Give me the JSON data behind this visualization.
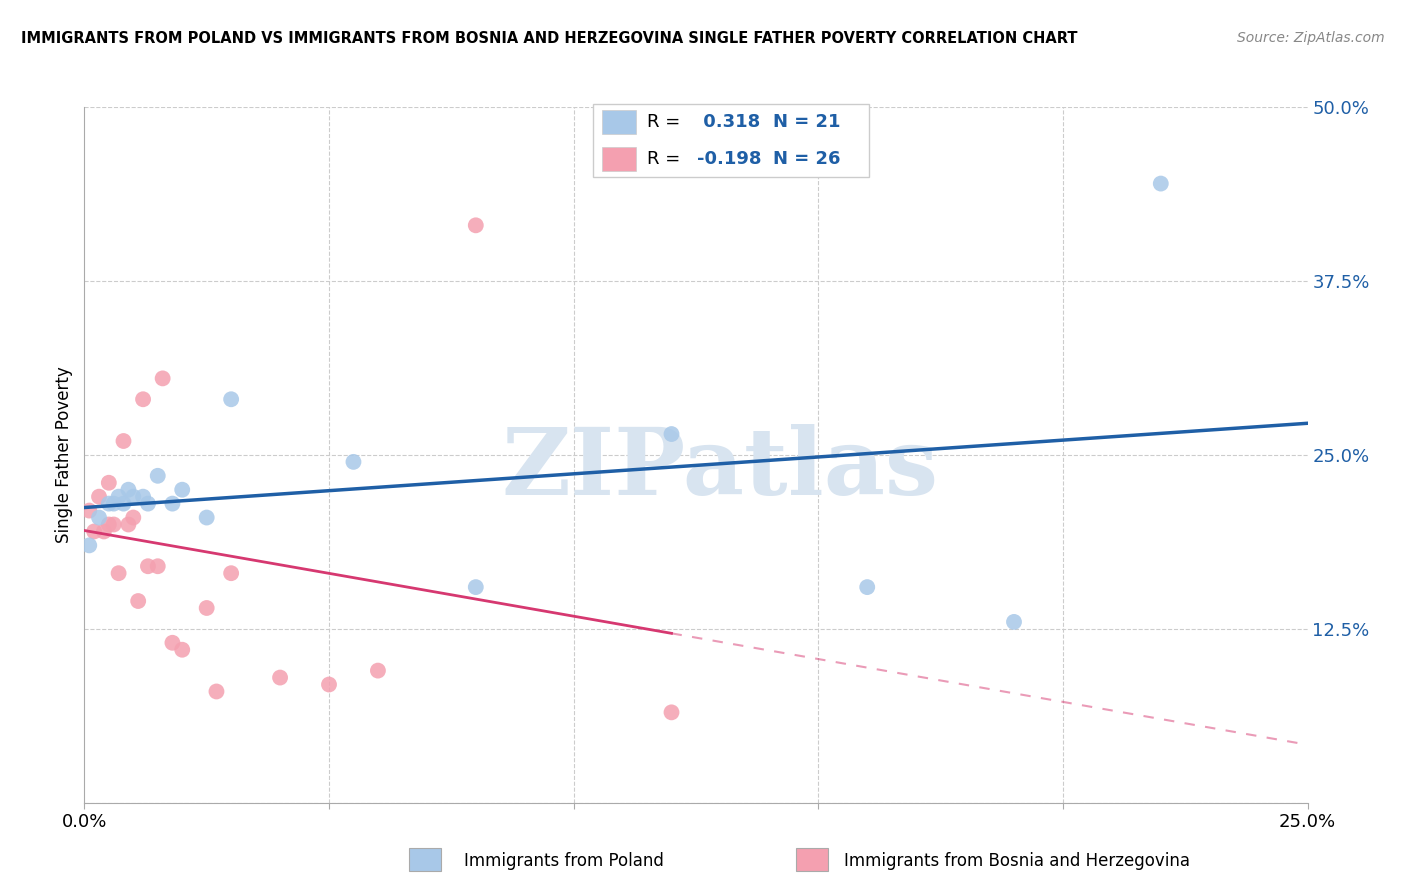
{
  "title": "IMMIGRANTS FROM POLAND VS IMMIGRANTS FROM BOSNIA AND HERZEGOVINA SINGLE FATHER POVERTY CORRELATION CHART",
  "source": "Source: ZipAtlas.com",
  "xlabel_poland": "Immigrants from Poland",
  "xlabel_bosnia": "Immigrants from Bosnia and Herzegovina",
  "ylabel": "Single Father Poverty",
  "xlim": [
    0,
    0.25
  ],
  "ylim": [
    0,
    0.5
  ],
  "R_poland": 0.318,
  "N_poland": 21,
  "R_bosnia": -0.198,
  "N_bosnia": 26,
  "color_poland": "#a8c8e8",
  "color_bosnia": "#f4a0b0",
  "trendline_poland_color": "#1f5fa6",
  "trendline_bosnia_color": "#d63870",
  "watermark_color": "#d8e4f0",
  "background_color": "#ffffff",
  "grid_color": "#cccccc",
  "poland_x": [
    0.001,
    0.003,
    0.005,
    0.006,
    0.007,
    0.008,
    0.009,
    0.01,
    0.012,
    0.013,
    0.015,
    0.018,
    0.02,
    0.025,
    0.03,
    0.055,
    0.08,
    0.12,
    0.16,
    0.19,
    0.22
  ],
  "poland_y": [
    0.185,
    0.205,
    0.215,
    0.215,
    0.22,
    0.215,
    0.225,
    0.22,
    0.22,
    0.215,
    0.235,
    0.215,
    0.225,
    0.205,
    0.29,
    0.245,
    0.155,
    0.265,
    0.155,
    0.13,
    0.445
  ],
  "bosnia_x": [
    0.001,
    0.002,
    0.003,
    0.004,
    0.005,
    0.005,
    0.006,
    0.007,
    0.008,
    0.009,
    0.01,
    0.011,
    0.012,
    0.013,
    0.015,
    0.016,
    0.018,
    0.02,
    0.025,
    0.027,
    0.03,
    0.04,
    0.05,
    0.06,
    0.08,
    0.12
  ],
  "bosnia_y": [
    0.21,
    0.195,
    0.22,
    0.195,
    0.23,
    0.2,
    0.2,
    0.165,
    0.26,
    0.2,
    0.205,
    0.145,
    0.29,
    0.17,
    0.17,
    0.305,
    0.115,
    0.11,
    0.14,
    0.08,
    0.165,
    0.09,
    0.085,
    0.095,
    0.415,
    0.065
  ]
}
